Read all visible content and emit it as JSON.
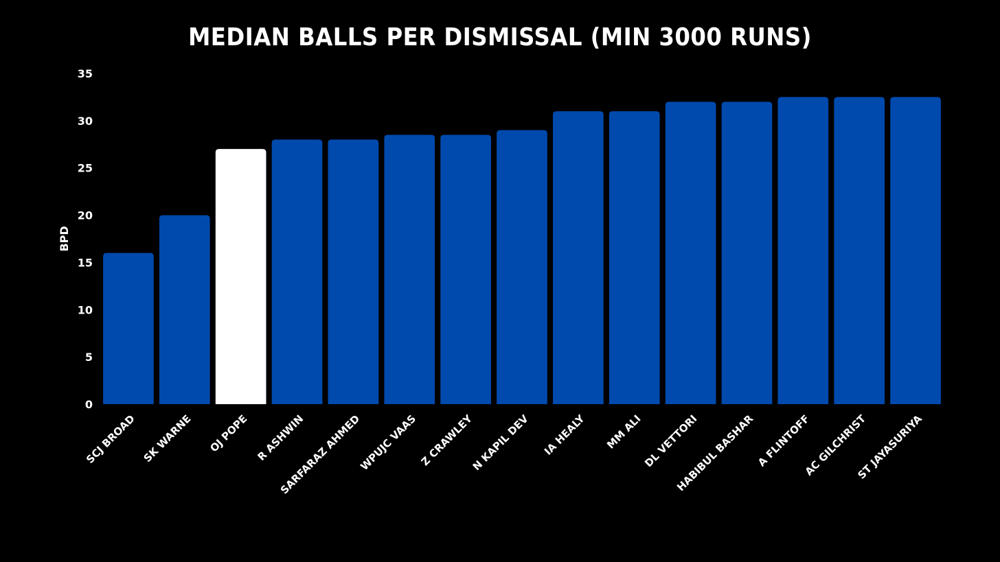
{
  "chart_data": {
    "type": "bar",
    "title": "MEDIAN BALLS PER DISMISSAL (MIN 3000 RUNS)",
    "xlabel": "",
    "ylabel": "BPD",
    "ylim": [
      0,
      35
    ],
    "yticks": [
      0,
      5,
      10,
      15,
      20,
      25,
      30,
      35
    ],
    "grid": false,
    "categories": [
      "SCJ BROAD",
      "SK WARNE",
      "OJ POPE",
      "R ASHWIN",
      "SARFARAZ AHMED",
      "WPUJC VAAS",
      "Z CRAWLEY",
      "N KAPIL DEV",
      "IA HEALY",
      "MM ALI",
      "DL VETTORI",
      "HABIBUL BASHAR",
      "A FLINTOFF",
      "AC GILCHRIST",
      "ST JAYASURIYA"
    ],
    "values": [
      16,
      20,
      27,
      28,
      28,
      28.5,
      28.5,
      29,
      31,
      31,
      32,
      32,
      32.5,
      32.5,
      32.5
    ],
    "bar_color": "#004AAD",
    "highlight_color": "#FFFFFF",
    "highlight_category": "OJ POPE",
    "background_color": "#000000",
    "text_color": "#FFFFFF"
  }
}
